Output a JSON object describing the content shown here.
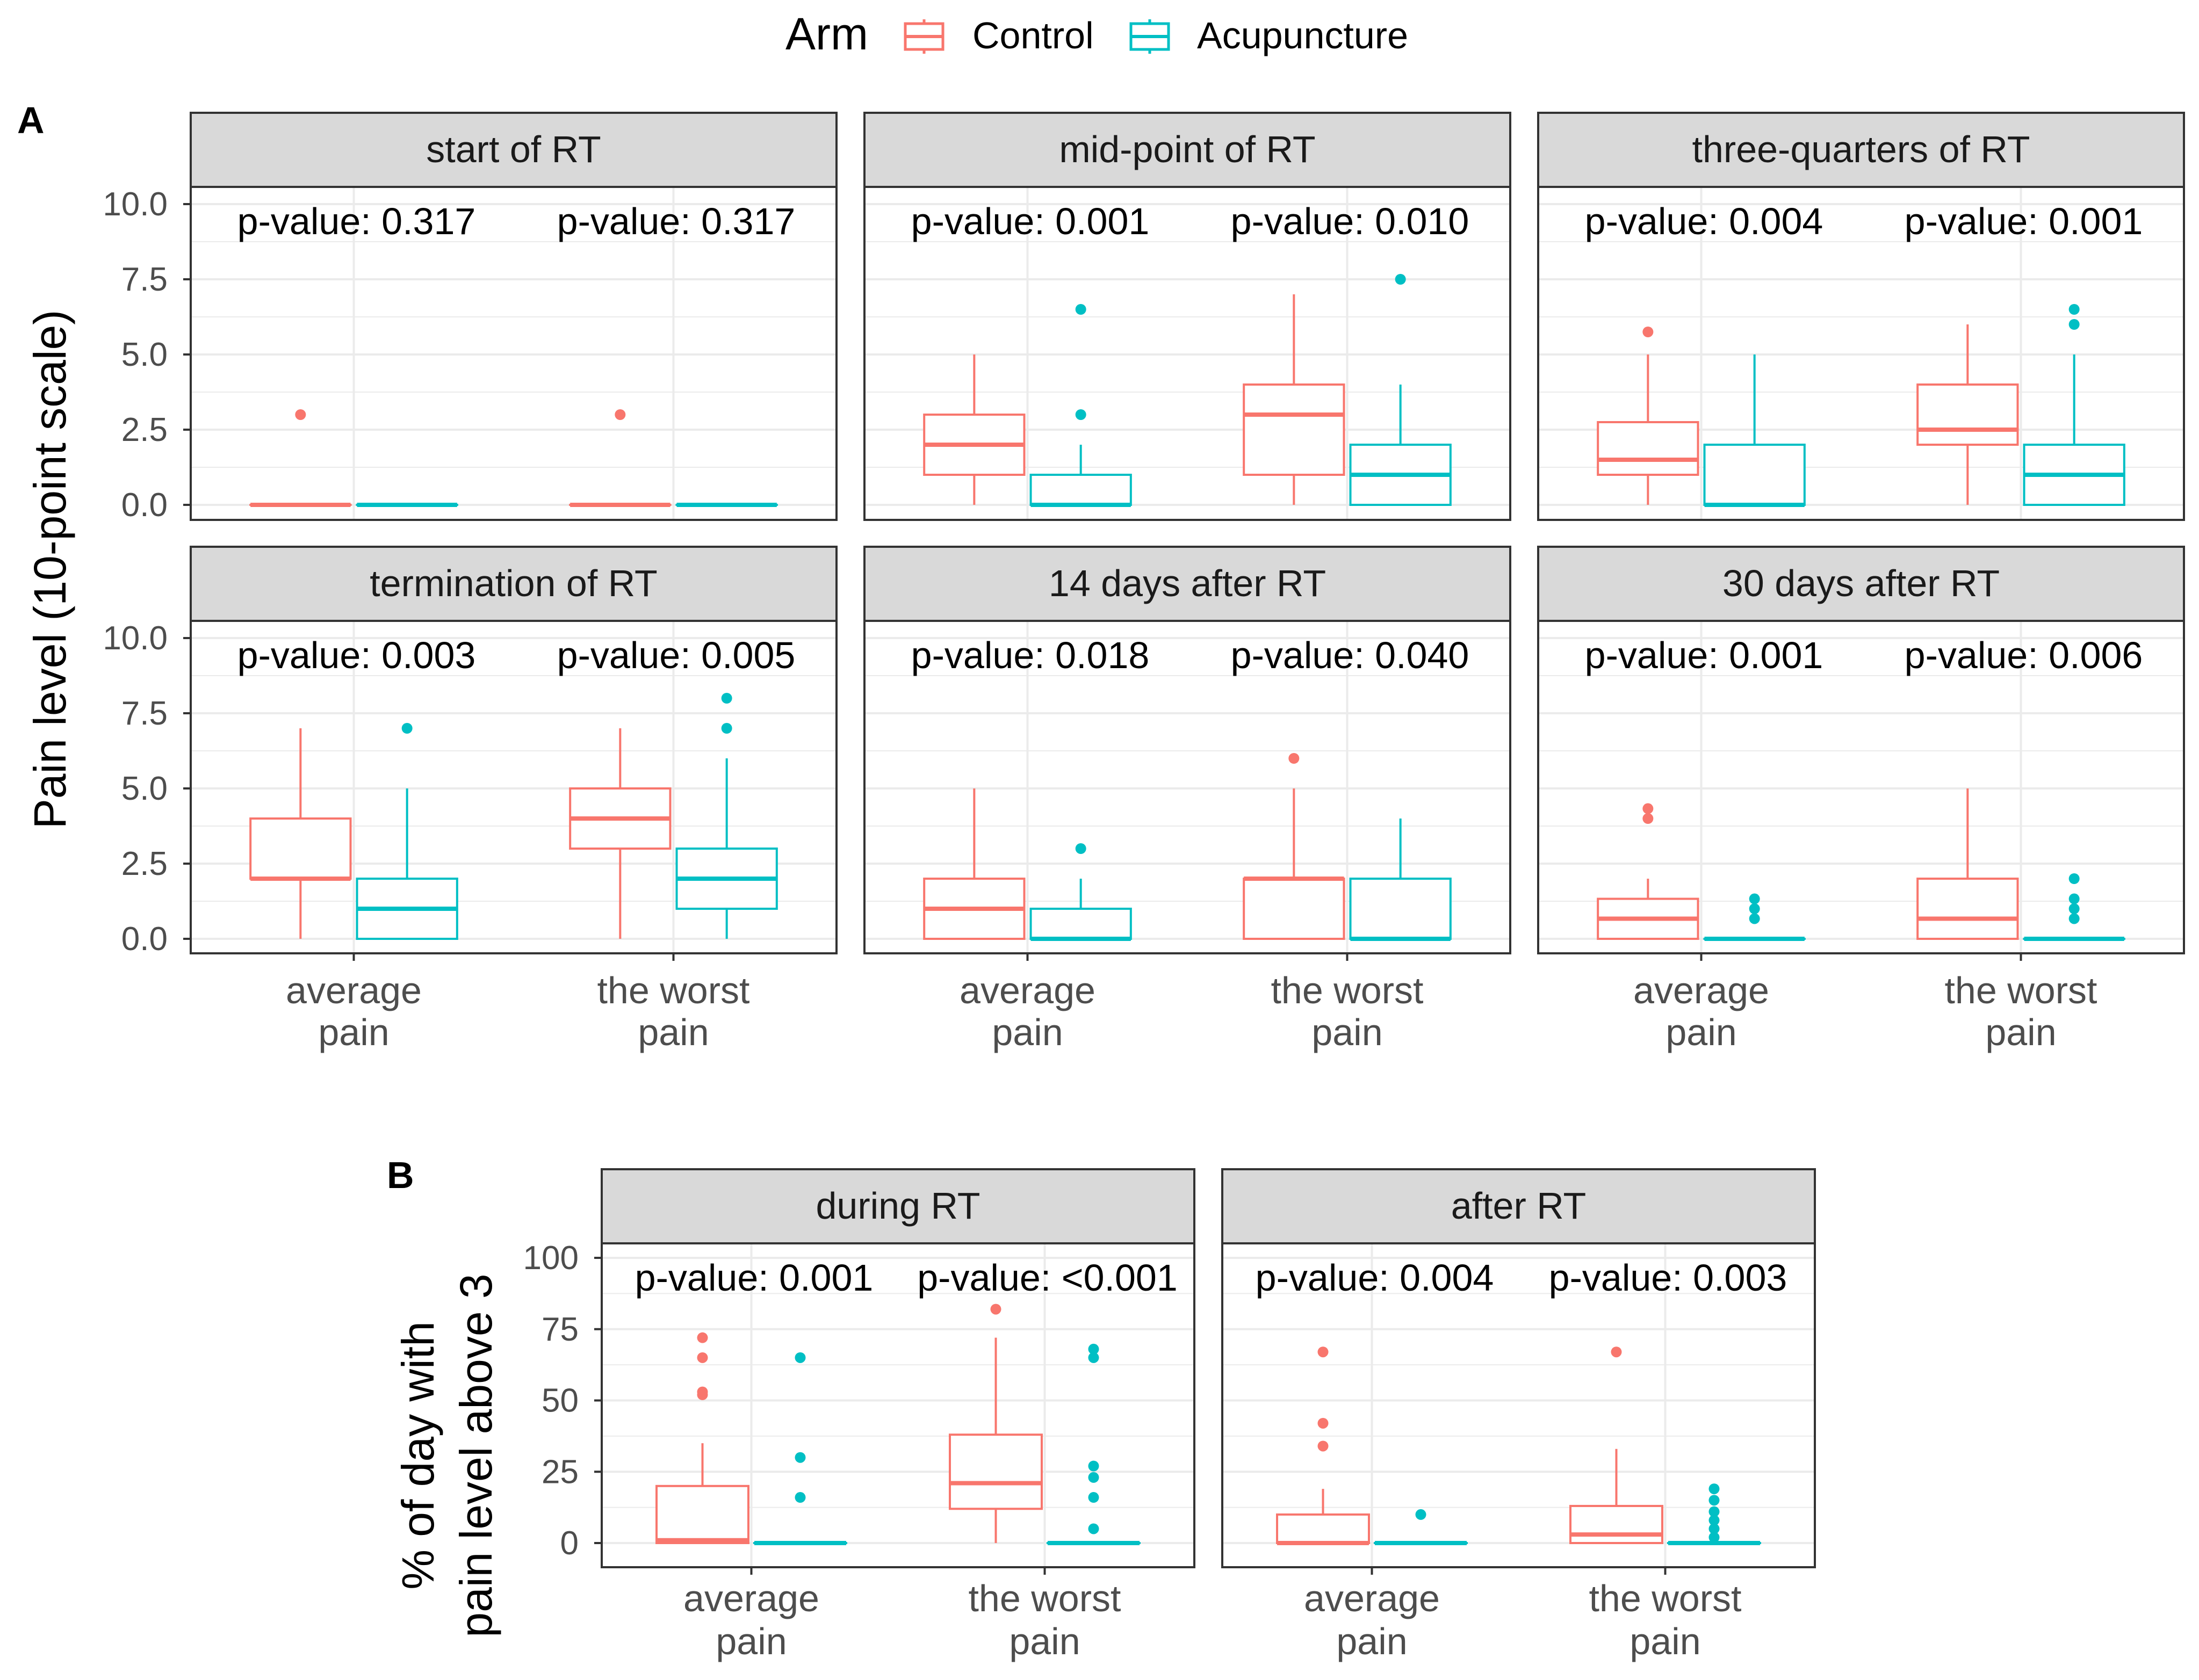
{
  "legend": {
    "title": "Arm",
    "items": [
      {
        "label": "Control",
        "color": "#F8766D"
      },
      {
        "label": "Acupuncture",
        "color": "#00BFC4"
      }
    ]
  },
  "colors": {
    "control": "#F8766D",
    "acupuncture": "#00BFC4",
    "strip": "#D9D9D9",
    "grid": "#EBEBEB"
  },
  "chart_data": [
    {
      "type": "box",
      "tag": "A",
      "ylabel": "Pain level (10-point scale)",
      "ylim": [
        0,
        10
      ],
      "yticks": [
        "0.0",
        "2.5",
        "5.0",
        "7.5",
        "10.0"
      ],
      "ytick_values": [
        0,
        2.5,
        5,
        7.5,
        10
      ],
      "categories": [
        [
          "average",
          "pain"
        ],
        [
          "the worst",
          "pain"
        ]
      ],
      "series": [
        "Control",
        "Acupuncture"
      ],
      "facets": [
        {
          "label": "start of RT",
          "pvalues": [
            "p-value: 0.317",
            "p-value: 0.317"
          ],
          "boxes": [
            {
              "stats": [
                0,
                0,
                0,
                0,
                0
              ],
              "outliers": [
                3
              ]
            },
            {
              "stats": [
                0,
                0,
                0,
                0,
                0
              ],
              "outliers": []
            },
            {
              "stats": [
                0,
                0,
                0,
                0,
                0
              ],
              "outliers": [
                3
              ]
            },
            {
              "stats": [
                0,
                0,
                0,
                0,
                0
              ],
              "outliers": []
            }
          ]
        },
        {
          "label": "mid-point of RT",
          "pvalues": [
            "p-value: 0.001",
            "p-value: 0.010"
          ],
          "boxes": [
            {
              "stats": [
                0,
                1,
                2,
                3,
                5
              ],
              "outliers": []
            },
            {
              "stats": [
                0,
                0,
                0,
                1,
                2
              ],
              "outliers": [
                3,
                6.5
              ]
            },
            {
              "stats": [
                0,
                1,
                3,
                4,
                7
              ],
              "outliers": []
            },
            {
              "stats": [
                0,
                0,
                1,
                2,
                4
              ],
              "outliers": [
                7.5
              ]
            }
          ]
        },
        {
          "label": "three-quarters of RT",
          "pvalues": [
            "p-value: 0.004",
            "p-value: 0.001"
          ],
          "boxes": [
            {
              "stats": [
                0,
                1,
                1.5,
                2.75,
                5
              ],
              "outliers": [
                5.75
              ]
            },
            {
              "stats": [
                0,
                0,
                0,
                2,
                5
              ],
              "outliers": []
            },
            {
              "stats": [
                0,
                2,
                2.5,
                4,
                6
              ],
              "outliers": []
            },
            {
              "stats": [
                0,
                0,
                1,
                2,
                5
              ],
              "outliers": [
                6,
                6.5
              ]
            }
          ]
        },
        {
          "label": "termination of RT",
          "pvalues": [
            "p-value: 0.003",
            "p-value: 0.005"
          ],
          "boxes": [
            {
              "stats": [
                0,
                2,
                2,
                4,
                7
              ],
              "outliers": []
            },
            {
              "stats": [
                0,
                0,
                1,
                2,
                5
              ],
              "outliers": [
                7
              ]
            },
            {
              "stats": [
                0,
                3,
                4,
                5,
                7
              ],
              "outliers": []
            },
            {
              "stats": [
                0,
                1,
                2,
                3,
                6
              ],
              "outliers": [
                7,
                8
              ]
            }
          ]
        },
        {
          "label": "14 days after RT",
          "pvalues": [
            "p-value: 0.018",
            "p-value: 0.040"
          ],
          "boxes": [
            {
              "stats": [
                0,
                0,
                1,
                2,
                5
              ],
              "outliers": []
            },
            {
              "stats": [
                0,
                0,
                0,
                1,
                2
              ],
              "outliers": [
                3
              ]
            },
            {
              "stats": [
                0,
                0,
                2,
                2,
                5
              ],
              "outliers": [
                6
              ]
            },
            {
              "stats": [
                0,
                0,
                0,
                2,
                4
              ],
              "outliers": []
            }
          ]
        },
        {
          "label": "30 days after RT",
          "pvalues": [
            "p-value: 0.001",
            "p-value: 0.006"
          ],
          "boxes": [
            {
              "stats": [
                0,
                0,
                0.67,
                1.33,
                2
              ],
              "outliers": [
                4,
                4.33
              ]
            },
            {
              "stats": [
                0,
                0,
                0,
                0,
                0
              ],
              "outliers": [
                0.67,
                1,
                1.33
              ]
            },
            {
              "stats": [
                0,
                0,
                0.67,
                2,
                5
              ],
              "outliers": []
            },
            {
              "stats": [
                0,
                0,
                0,
                0,
                0
              ],
              "outliers": [
                0.67,
                1,
                1.33,
                2
              ]
            }
          ]
        }
      ]
    },
    {
      "type": "box",
      "tag": "B",
      "ylabel_lines": [
        "% of day with",
        "pain level above 3"
      ],
      "ylim": [
        0,
        100
      ],
      "yticks": [
        "0",
        "25",
        "50",
        "75",
        "100"
      ],
      "ytick_values": [
        0,
        25,
        50,
        75,
        100
      ],
      "categories": [
        [
          "average",
          "pain"
        ],
        [
          "the worst",
          "pain"
        ]
      ],
      "series": [
        "Control",
        "Acupuncture"
      ],
      "facets": [
        {
          "label": "during RT",
          "pvalues": [
            "p-value: 0.001",
            "p-value: <0.001"
          ],
          "boxes": [
            {
              "stats": [
                0,
                0,
                1,
                20,
                35
              ],
              "outliers": [
                52,
                53,
                65,
                72
              ]
            },
            {
              "stats": [
                0,
                0,
                0,
                0,
                0
              ],
              "outliers": [
                16,
                30,
                65
              ]
            },
            {
              "stats": [
                0,
                12,
                21,
                38,
                72
              ],
              "outliers": [
                82
              ]
            },
            {
              "stats": [
                0,
                0,
                0,
                0,
                0
              ],
              "outliers": [
                5,
                16,
                23,
                27,
                65,
                68
              ]
            }
          ]
        },
        {
          "label": "after RT",
          "pvalues": [
            "p-value: 0.004",
            "p-value: 0.003"
          ],
          "boxes": [
            {
              "stats": [
                0,
                0,
                0,
                10,
                19
              ],
              "outliers": [
                34,
                42,
                67
              ]
            },
            {
              "stats": [
                0,
                0,
                0,
                0,
                0
              ],
              "outliers": [
                10
              ]
            },
            {
              "stats": [
                0,
                0,
                3,
                13,
                33
              ],
              "outliers": [
                67
              ]
            },
            {
              "stats": [
                0,
                0,
                0,
                0,
                0
              ],
              "outliers": [
                2,
                5,
                8,
                11,
                15,
                19
              ]
            }
          ]
        }
      ]
    }
  ]
}
